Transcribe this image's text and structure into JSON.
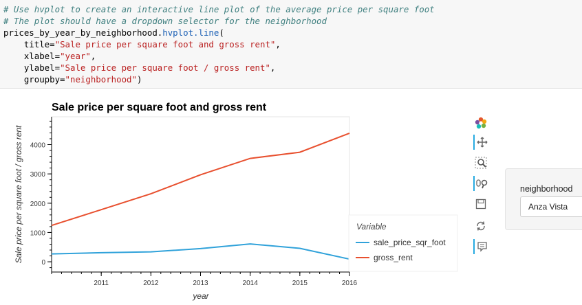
{
  "code": {
    "comment1": "# Use hvplot to create an interactive line plot of the average price per square foot",
    "comment2": "# The plot should have a dropdown selector for the neighborhood",
    "call_object": "prices_by_year_by_neighborhood.",
    "call_method": "hvplot.line",
    "call_open": "(",
    "arg_title_key": "    title=",
    "arg_title_val": "\"Sale price per square foot and gross rent\"",
    "arg_xlabel_key": "    xlabel=",
    "arg_xlabel_val": "\"year\"",
    "arg_ylabel_key": "    ylabel=",
    "arg_ylabel_val": "\"Sale price per square foot / gross rent\"",
    "arg_groupby_key": "    groupby=",
    "arg_groupby_val": "\"neighborhood\"",
    "call_close": ")",
    "comma": ","
  },
  "chart_data": {
    "type": "line",
    "title": "Sale price per square foot and gross rent",
    "xlabel": "year",
    "ylabel": "Sale price per square foot / gross rent",
    "x": [
      2010,
      2011,
      2012,
      2013,
      2014,
      2015,
      2016
    ],
    "xlim": [
      2010,
      2016
    ],
    "ylim": [
      -350,
      4950
    ],
    "xticks": [
      "2011",
      "2012",
      "2013",
      "2014",
      "2015",
      "2016"
    ],
    "yticks": [
      "0",
      "1000",
      "2000",
      "3000",
      "4000"
    ],
    "legend_title": "Variable",
    "legend_placement": "bottom-right",
    "series": [
      {
        "name": "sale_price_sqr_foot",
        "color": "#30a2da",
        "values": [
          270,
          310,
          340,
          450,
          610,
          460,
          90
        ]
      },
      {
        "name": "gross_rent",
        "color": "#e8502f",
        "values": [
          1240,
          1780,
          2320,
          2970,
          3530,
          3740,
          4390
        ]
      }
    ]
  },
  "toolbar": {
    "accent": "#26aae1",
    "tools": [
      "bokeh-logo-icon",
      "pan-icon",
      "box-zoom-icon",
      "wheel-zoom-icon",
      "save-icon",
      "reset-icon",
      "hover-icon"
    ]
  },
  "widget": {
    "label": "neighborhood",
    "selected": "Anza Vista"
  }
}
